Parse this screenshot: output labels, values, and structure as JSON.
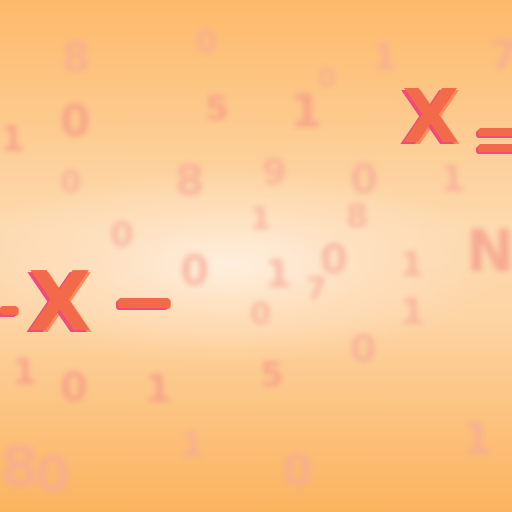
{
  "scene": {
    "name": "Blurry math symbols background",
    "background_colors": [
      "#fdb96a",
      "#fddab0",
      "#fbb35f"
    ],
    "accent_color": "#f36a4a",
    "secondary_accent": "#f04b7a"
  },
  "symbols": {
    "large_x_left": "X",
    "large_x_right": "X",
    "equals_right": "=",
    "minus_left": "-",
    "minus_center": "-"
  },
  "faint_glyphs": {
    "g1": "8",
    "g2": "0",
    "g3": "1",
    "g4": "0",
    "g5": "7",
    "g6": "1",
    "g7": "0",
    "g8": "5",
    "g9": "1",
    "g10": "0",
    "g11": "8",
    "g12": "9",
    "g13": "0",
    "g14": "1",
    "g15": "N",
    "g16": "0",
    "g17": "1",
    "g18": "8",
    "g19": "0",
    "g20": "1",
    "g21": "0",
    "g22": "1",
    "g23": "0",
    "g24": "7",
    "g25": "1",
    "g26": "0",
    "g27": "1",
    "g28": "0",
    "g29": "1",
    "g30": "5",
    "g31": "8",
    "g32": "0",
    "g33": "1",
    "g34": "0",
    "g35": "1"
  }
}
